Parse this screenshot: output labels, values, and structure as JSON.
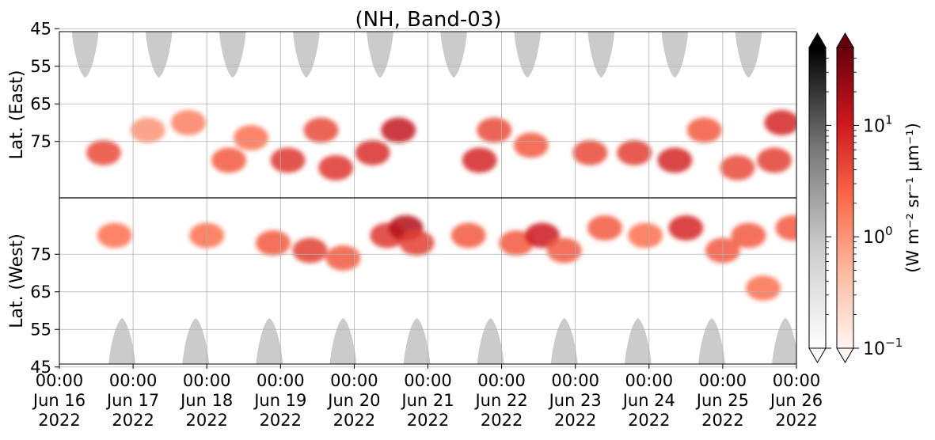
{
  "chart_data": {
    "type": "heatmap",
    "title": "(NH, Band-03)",
    "ylabel_top": "Lat. (East)",
    "ylabel_bottom": "Lat. (West)",
    "x_ticks": [
      {
        "l1": "00:00",
        "l2": "Jun 16",
        "l3": "2022"
      },
      {
        "l1": "00:00",
        "l2": "Jun 17",
        "l3": "2022"
      },
      {
        "l1": "00:00",
        "l2": "Jun 18",
        "l3": "2022"
      },
      {
        "l1": "00:00",
        "l2": "Jun 19",
        "l3": "2022"
      },
      {
        "l1": "00:00",
        "l2": "Jun 20",
        "l3": "2022"
      },
      {
        "l1": "00:00",
        "l2": "Jun 21",
        "l3": "2022"
      },
      {
        "l1": "00:00",
        "l2": "Jun 22",
        "l3": "2022"
      },
      {
        "l1": "00:00",
        "l2": "Jun 23",
        "l3": "2022"
      },
      {
        "l1": "00:00",
        "l2": "Jun 24",
        "l3": "2022"
      },
      {
        "l1": "00:00",
        "l2": "Jun 25",
        "l3": "2022"
      },
      {
        "l1": "00:00",
        "l2": "Jun 26",
        "l3": "2022"
      }
    ],
    "y_ticks_east": [
      "45",
      "55",
      "65",
      "75"
    ],
    "y_ticks_west": [
      "75",
      "65",
      "55",
      "45"
    ],
    "grid": true,
    "colorbars": [
      {
        "name": "gray",
        "colors": [
          "#ffffff",
          "#cccccc",
          "#777777",
          "#000000"
        ]
      },
      {
        "name": "red",
        "colors": [
          "#fff5f0",
          "#fcbba1",
          "#fb6a4a",
          "#cb181d",
          "#67000d"
        ]
      }
    ],
    "colorbar_label": "(W m⁻² sr⁻¹ μm⁻¹)",
    "colorbar_ticks": [
      {
        "base": "10",
        "exp": "1",
        "value": 10
      },
      {
        "base": "10",
        "exp": "0",
        "value": 1
      },
      {
        "base": "10",
        "exp": "−1",
        "value": 0.1
      }
    ],
    "colorbar_range": [
      0.1,
      50
    ],
    "daylight_lobes_top_days": [
      0.35,
      1.35,
      2.35,
      3.35,
      4.35,
      5.35,
      6.35,
      7.35,
      8.35,
      9.35
    ],
    "daylight_lobes_bottom_days": [
      0.85,
      1.85,
      2.85,
      3.85,
      4.85,
      5.85,
      6.85,
      7.85,
      8.85,
      9.85
    ],
    "emission_clusters": [
      {
        "day": 0.6,
        "lat": 78,
        "side": "east",
        "value": 4
      },
      {
        "day": 0.75,
        "lat": 80,
        "side": "west",
        "value": 2
      },
      {
        "day": 1.2,
        "lat": 72,
        "side": "east",
        "value": 1
      },
      {
        "day": 1.75,
        "lat": 70,
        "side": "east",
        "value": 1.5
      },
      {
        "day": 2.0,
        "lat": 80,
        "side": "west",
        "value": 2
      },
      {
        "day": 2.3,
        "lat": 80,
        "side": "east",
        "value": 3
      },
      {
        "day": 2.6,
        "lat": 74,
        "side": "east",
        "value": 2
      },
      {
        "day": 2.9,
        "lat": 78,
        "side": "west",
        "value": 3
      },
      {
        "day": 3.1,
        "lat": 80,
        "side": "east",
        "value": 6
      },
      {
        "day": 3.4,
        "lat": 76,
        "side": "west",
        "value": 5
      },
      {
        "day": 3.55,
        "lat": 72,
        "side": "east",
        "value": 4
      },
      {
        "day": 3.75,
        "lat": 82,
        "side": "east",
        "value": 6
      },
      {
        "day": 3.85,
        "lat": 74,
        "side": "west",
        "value": 3
      },
      {
        "day": 4.25,
        "lat": 78,
        "side": "east",
        "value": 7
      },
      {
        "day": 4.45,
        "lat": 80,
        "side": "west",
        "value": 6
      },
      {
        "day": 4.6,
        "lat": 72,
        "side": "east",
        "value": 12
      },
      {
        "day": 4.7,
        "lat": 82,
        "side": "west",
        "value": 15
      },
      {
        "day": 4.85,
        "lat": 78,
        "side": "west",
        "value": 5
      },
      {
        "day": 5.55,
        "lat": 80,
        "side": "west",
        "value": 3
      },
      {
        "day": 5.7,
        "lat": 80,
        "side": "east",
        "value": 8
      },
      {
        "day": 5.9,
        "lat": 72,
        "side": "east",
        "value": 4
      },
      {
        "day": 6.2,
        "lat": 78,
        "side": "west",
        "value": 3
      },
      {
        "day": 6.4,
        "lat": 76,
        "side": "east",
        "value": 3
      },
      {
        "day": 6.55,
        "lat": 80,
        "side": "west",
        "value": 10
      },
      {
        "day": 6.85,
        "lat": 76,
        "side": "west",
        "value": 3
      },
      {
        "day": 7.2,
        "lat": 78,
        "side": "east",
        "value": 4
      },
      {
        "day": 7.4,
        "lat": 82,
        "side": "west",
        "value": 3
      },
      {
        "day": 7.8,
        "lat": 78,
        "side": "east",
        "value": 5
      },
      {
        "day": 7.95,
        "lat": 80,
        "side": "west",
        "value": 2
      },
      {
        "day": 8.35,
        "lat": 80,
        "side": "east",
        "value": 8
      },
      {
        "day": 8.5,
        "lat": 82,
        "side": "west",
        "value": 8
      },
      {
        "day": 8.75,
        "lat": 72,
        "side": "east",
        "value": 3
      },
      {
        "day": 9.0,
        "lat": 76,
        "side": "west",
        "value": 3
      },
      {
        "day": 9.2,
        "lat": 82,
        "side": "east",
        "value": 4
      },
      {
        "day": 9.35,
        "lat": 80,
        "side": "west",
        "value": 3
      },
      {
        "day": 9.55,
        "lat": 66,
        "side": "west",
        "value": 2
      },
      {
        "day": 9.7,
        "lat": 80,
        "side": "east",
        "value": 5
      },
      {
        "day": 9.8,
        "lat": 70,
        "side": "east",
        "value": 8
      },
      {
        "day": 9.95,
        "lat": 82,
        "side": "west",
        "value": 3
      }
    ]
  }
}
